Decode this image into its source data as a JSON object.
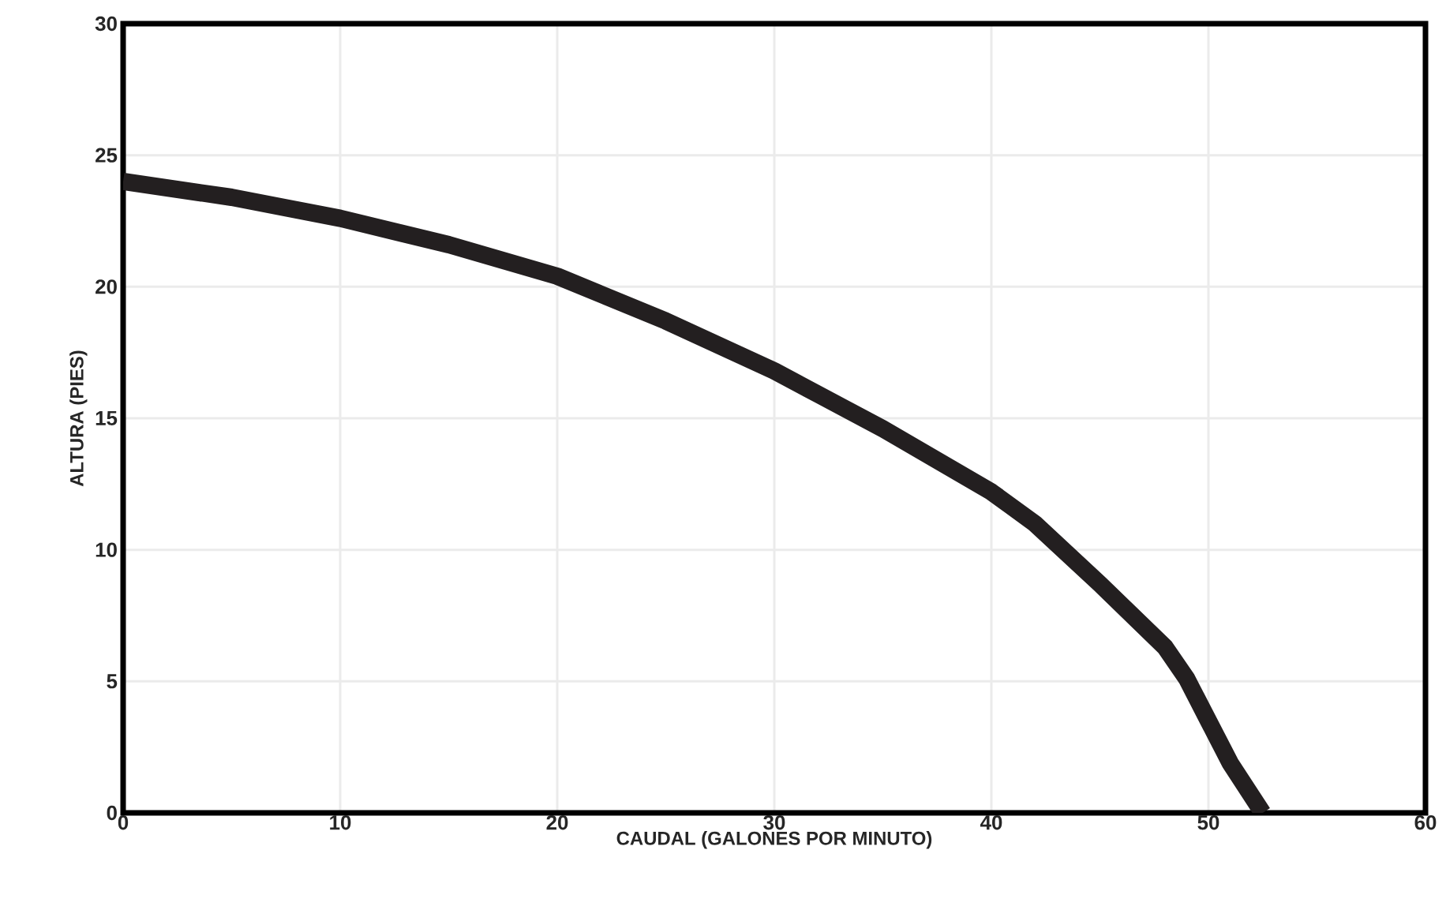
{
  "chart_data": {
    "type": "line",
    "xlabel": "CAUDAL (GALONES POR MINUTO)",
    "ylabel": "ALTURA (PIES)",
    "series": [
      {
        "color": "#231f20",
        "x": [
          0,
          5,
          10,
          15,
          20,
          25,
          30,
          35,
          40,
          42,
          45,
          48,
          49,
          50,
          51,
          52.5
        ],
        "values": [
          24.0,
          23.4,
          22.6,
          21.6,
          20.4,
          18.7,
          16.8,
          14.6,
          12.2,
          11.0,
          8.7,
          6.3,
          5.1,
          3.5,
          1.9,
          0
        ]
      }
    ],
    "xlim": [
      0,
      60
    ],
    "ylim": [
      0,
      30
    ],
    "xticks": [
      0,
      10,
      20,
      30,
      40,
      50,
      60
    ],
    "yticks": [
      0,
      5,
      10,
      15,
      20,
      25,
      30
    ],
    "grid": true,
    "marker": "none",
    "line_style": "solid"
  }
}
